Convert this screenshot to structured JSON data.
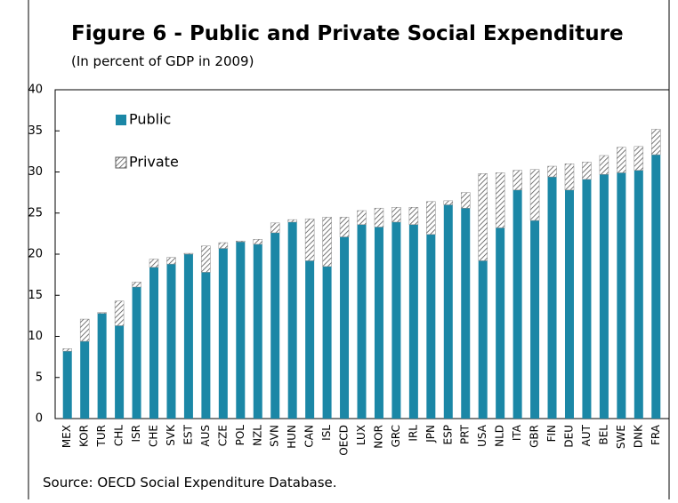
{
  "chart_data": {
    "type": "stacked-bar",
    "title": "Figure 6 - Public and Private Social Expenditure",
    "subtitle": "(In percent of GDP in 2009)",
    "source": "Source: OECD Social Expenditure Database.",
    "categories": [
      "MEX",
      "KOR",
      "TUR",
      "CHL",
      "ISR",
      "CHE",
      "SVK",
      "EST",
      "AUS",
      "CZE",
      "POL",
      "NZL",
      "SVN",
      "HUN",
      "CAN",
      "ISL",
      "OECD",
      "LUX",
      "NOR",
      "GRC",
      "IRL",
      "JPN",
      "ESP",
      "PRT",
      "USA",
      "NLD",
      "ITA",
      "GBR",
      "FIN",
      "DEU",
      "AUT",
      "BEL",
      "SWE",
      "DNK",
      "FRA"
    ],
    "series": [
      {
        "name": "Public",
        "color": "#1b87a6",
        "hatch": false,
        "values": [
          8.2,
          9.4,
          12.8,
          11.3,
          16.0,
          18.4,
          18.8,
          20.0,
          17.8,
          20.7,
          21.5,
          21.2,
          22.6,
          23.9,
          19.2,
          18.5,
          22.1,
          23.6,
          23.3,
          23.9,
          23.6,
          22.4,
          26.0,
          25.6,
          19.2,
          23.2,
          27.8,
          24.1,
          29.4,
          27.8,
          29.1,
          29.7,
          29.9,
          30.2,
          32.1
        ]
      },
      {
        "name": "Private",
        "color": "#555555",
        "hatch": true,
        "values": [
          0.3,
          2.7,
          0.1,
          3.0,
          0.6,
          1.0,
          0.8,
          0.1,
          3.2,
          0.7,
          0.1,
          0.6,
          1.2,
          0.3,
          5.1,
          6.0,
          2.4,
          1.7,
          2.3,
          1.8,
          2.1,
          4.0,
          0.5,
          1.9,
          10.6,
          6.7,
          2.4,
          6.2,
          1.3,
          3.2,
          2.1,
          2.3,
          3.1,
          2.9,
          3.1
        ]
      }
    ],
    "ylim": [
      0,
      40
    ],
    "yticks": [
      0,
      5,
      10,
      15,
      20,
      25,
      30,
      35,
      40
    ],
    "grid": false,
    "title_color": "#1b87a6"
  }
}
